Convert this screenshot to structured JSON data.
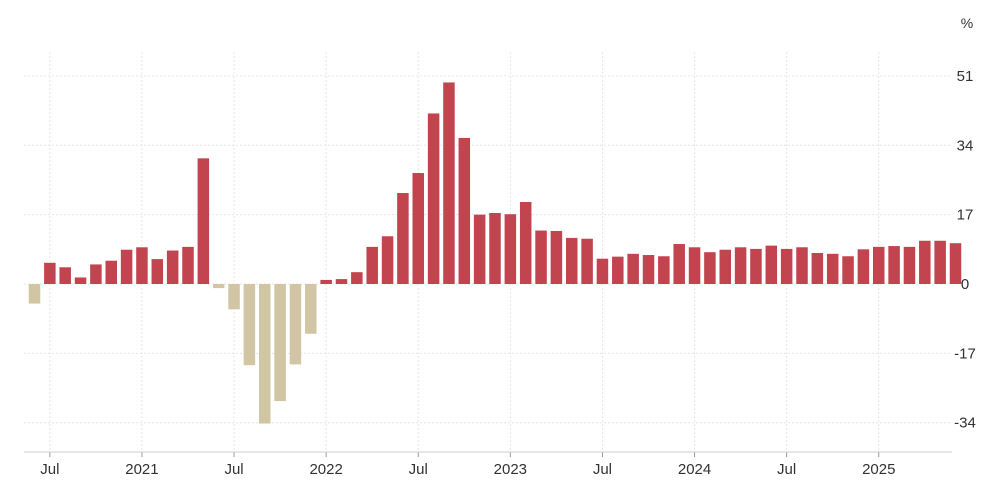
{
  "chart_data": {
    "type": "bar",
    "title": "",
    "xlabel": "",
    "ylabel": "",
    "unit": "%",
    "ylim": [
      -40,
      57
    ],
    "yticks": [
      51,
      34,
      17,
      0,
      -17,
      -34
    ],
    "colors": {
      "positive": "#c1444e",
      "negative": "#d1c5a3",
      "grid": "#e6e6e6",
      "axis": "#333333"
    },
    "x_ticks": [
      {
        "label": "Jul",
        "index": 1
      },
      {
        "label": "2021",
        "index": 7
      },
      {
        "label": "Jul",
        "index": 13
      },
      {
        "label": "2022",
        "index": 19
      },
      {
        "label": "Jul",
        "index": 25
      },
      {
        "label": "2023",
        "index": 31
      },
      {
        "label": "Jul",
        "index": 37
      },
      {
        "label": "2024",
        "index": 43
      },
      {
        "label": "Jul",
        "index": 49
      },
      {
        "label": "2025",
        "index": 55
      }
    ],
    "categories": [
      "2020-06",
      "2020-07",
      "2020-08",
      "2020-09",
      "2020-10",
      "2020-11",
      "2020-12",
      "2021-01",
      "2021-02",
      "2021-03",
      "2021-04",
      "2021-05",
      "2021-06",
      "2021-07",
      "2021-08",
      "2021-09",
      "2021-10",
      "2021-11",
      "2021-12",
      "2022-01",
      "2022-02",
      "2022-03",
      "2022-04",
      "2022-05",
      "2022-06",
      "2022-07",
      "2022-08",
      "2022-09",
      "2022-10",
      "2022-11",
      "2022-12",
      "2023-01",
      "2023-02",
      "2023-03",
      "2023-04",
      "2023-05",
      "2023-06",
      "2023-07",
      "2023-08",
      "2023-09",
      "2023-10",
      "2023-11",
      "2023-12",
      "2024-01",
      "2024-02",
      "2024-03",
      "2024-04",
      "2024-05",
      "2024-06",
      "2024-07",
      "2024-08",
      "2024-09",
      "2024-10",
      "2024-11",
      "2024-12",
      "2025-01",
      "2025-02",
      "2025-03",
      "2025-04",
      "2025-05",
      "2025-06"
    ],
    "values": [
      -4.8,
      5.2,
      4.1,
      1.6,
      4.8,
      5.7,
      8.4,
      9.0,
      6.1,
      8.2,
      9.1,
      30.8,
      -1.0,
      -6.2,
      -19.9,
      -34.2,
      -28.7,
      -19.7,
      -12.2,
      1.0,
      1.2,
      2.9,
      9.1,
      11.7,
      22.3,
      27.2,
      41.8,
      49.4,
      35.8,
      17.0,
      17.4,
      17.1,
      20.1,
      13.1,
      13.0,
      11.3,
      11.1,
      6.2,
      6.7,
      7.4,
      7.1,
      6.8,
      9.8,
      9.0,
      7.8,
      8.4,
      9.0,
      8.6,
      9.4,
      8.6,
      9.0,
      7.6,
      7.4,
      6.8,
      8.5,
      9.1,
      9.3,
      9.1,
      10.6,
      10.6,
      10.0
    ]
  }
}
